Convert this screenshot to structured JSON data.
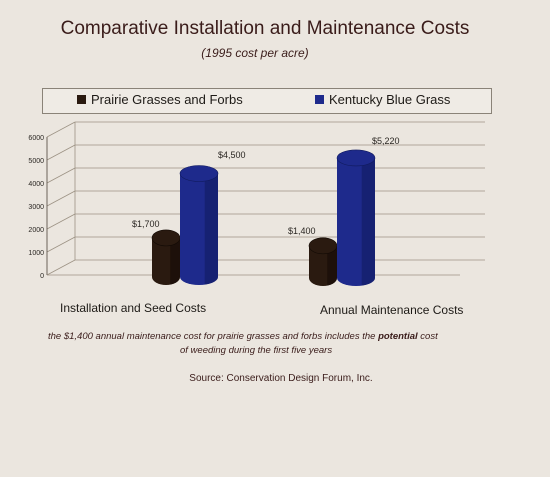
{
  "title": "Comparative Installation and Maintenance Costs",
  "subtitle": "(1995 cost per acre)",
  "legend": [
    {
      "label": "Prairie Grasses and Forbs",
      "color": "#2a1a10"
    },
    {
      "label": "Kentucky Blue Grass",
      "color": "#1e2a8c"
    }
  ],
  "chart_data": {
    "type": "bar",
    "categories": [
      "Installation and Seed Costs",
      "Annual Maintenance Costs"
    ],
    "series": [
      {
        "name": "Prairie Grasses and Forbs",
        "values": [
          1700,
          1400
        ],
        "labels": [
          "$1,700",
          "$1,400"
        ]
      },
      {
        "name": "Kentucky Blue Grass",
        "values": [
          4500,
          5220
        ],
        "labels": [
          "$4,500",
          "$5,220"
        ]
      }
    ],
    "yticks": [
      "0",
      "1000",
      "2000",
      "3000",
      "4000",
      "5000",
      "6000"
    ],
    "ylim": [
      0,
      6000
    ],
    "grid": true,
    "legend_position": "top"
  },
  "note": {
    "text_before": "the $1,400 annual maintenance cost for prairie grasses and forbs includes the ",
    "emphasis": "potential",
    "text_after": " cost",
    "line2": "of weeding during the first five years"
  },
  "source": "Source: Conservation Design Forum, Inc."
}
